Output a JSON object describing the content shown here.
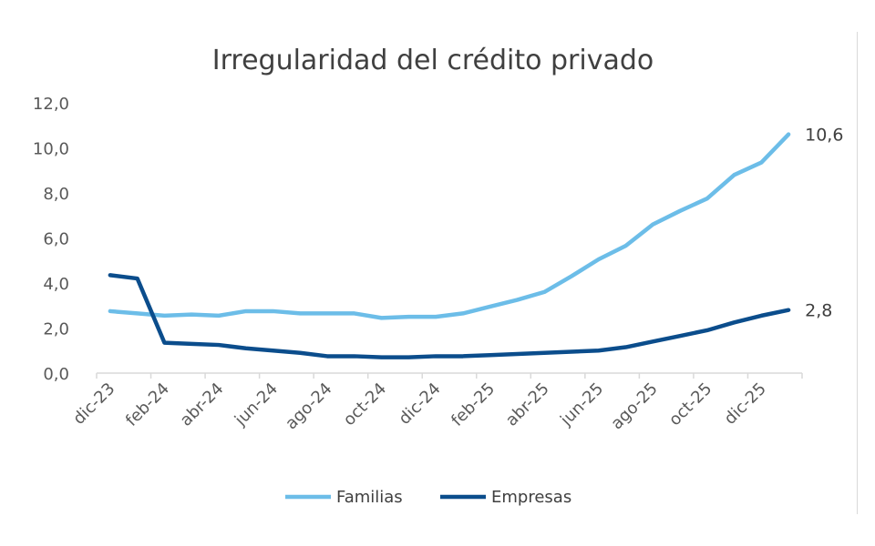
{
  "chart_data": {
    "type": "line",
    "title": "Irregularidad del crédito privado",
    "xlabel": "",
    "ylabel": "",
    "ylim": [
      0,
      12
    ],
    "yticks": [
      "0,0",
      "2,0",
      "4,0",
      "6,0",
      "8,0",
      "10,0",
      "12,0"
    ],
    "grid": false,
    "legend_position": "bottom",
    "categories": [
      "dic-23",
      "ene-24",
      "feb-24",
      "mar-24",
      "abr-24",
      "may-24",
      "jun-24",
      "jul-24",
      "ago-24",
      "sep-24",
      "oct-24",
      "nov-24",
      "dic-24",
      "ene-25",
      "feb-25",
      "mar-25",
      "abr-25",
      "may-25",
      "jun-25",
      "jul-25",
      "ago-25",
      "sep-25",
      "oct-25",
      "nov-25",
      "dic-25",
      "ene-26"
    ],
    "xtick_labels": [
      "dic-23",
      "feb-24",
      "abr-24",
      "jun-24",
      "ago-24",
      "oct-24",
      "dic-24",
      "feb-25",
      "abr-25",
      "jun-25",
      "ago-25",
      "oct-25",
      "dic-25"
    ],
    "series": [
      {
        "name": "Familias",
        "color": "#6cbde8",
        "values": [
          2.75,
          2.65,
          2.55,
          2.6,
          2.55,
          2.75,
          2.75,
          2.65,
          2.65,
          2.65,
          2.45,
          2.5,
          2.5,
          2.65,
          2.95,
          3.25,
          3.6,
          4.3,
          5.05,
          5.65,
          6.6,
          7.2,
          7.75,
          8.8,
          9.35,
          10.6
        ],
        "end_label": "10,6"
      },
      {
        "name": "Empresas",
        "color": "#0b4d8c",
        "values": [
          4.35,
          4.2,
          1.35,
          1.3,
          1.25,
          1.1,
          1.0,
          0.9,
          0.75,
          0.75,
          0.7,
          0.7,
          0.75,
          0.75,
          0.8,
          0.85,
          0.9,
          0.95,
          1.0,
          1.15,
          1.4,
          1.65,
          1.9,
          2.25,
          2.55,
          2.8
        ],
        "end_label": "2,8"
      }
    ]
  }
}
